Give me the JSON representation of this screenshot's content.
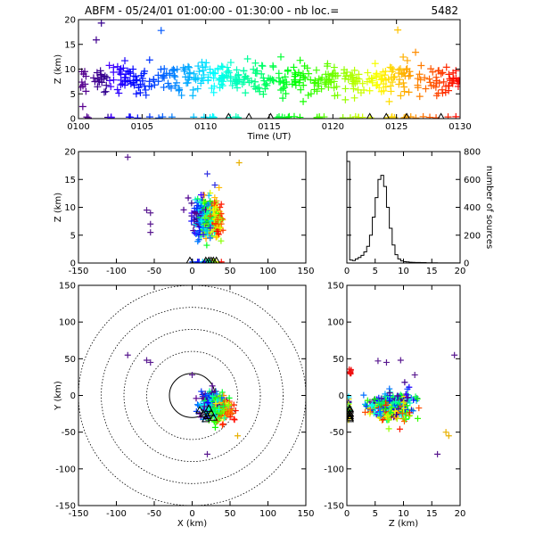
{
  "header": {
    "title": "ABFM - 05/24/01 01:00:00 - 01:30:00 - nb loc.=",
    "count": "5482"
  },
  "chart_data": [
    {
      "id": "time-height",
      "type": "scatter",
      "xlabel": "Time (UT)",
      "ylabel": "Z (km)",
      "xlim": [
        0,
        30
      ],
      "ylim": [
        0,
        20
      ],
      "x_ticks": [
        0,
        5,
        10,
        15,
        20,
        25,
        30
      ],
      "x_tick_labels": [
        "0100",
        "0105",
        "0110",
        "0115",
        "0120",
        "0125",
        "0130"
      ],
      "y_ticks": [
        0,
        5,
        10,
        15,
        20
      ],
      "color_encoding": "time, purple to red",
      "outliers": [
        {
          "x": 1.8,
          "y": 19.3
        },
        {
          "x": 1.4,
          "y": 15.9
        },
        {
          "x": 6.5,
          "y": 17.8
        },
        {
          "x": 25.1,
          "y": 17.9
        },
        {
          "x": 26.5,
          "y": 13.4
        }
      ],
      "stations_x": [
        11.8,
        13.4,
        15.1,
        22.9,
        24.2,
        25.8,
        28.5
      ]
    },
    {
      "id": "xz-view",
      "type": "scatter",
      "xlabel": "",
      "ylabel": "Z (km)",
      "xlim": [
        -150,
        150
      ],
      "ylim": [
        0,
        20
      ],
      "x_ticks": [
        -150,
        -100,
        -50,
        0,
        50,
        100,
        150
      ],
      "y_ticks": [
        0,
        5,
        10,
        15,
        20
      ],
      "cluster": {
        "x_center": 20,
        "x_spread": 22,
        "z_center": 8,
        "z_spread": 3.5
      },
      "outliers": [
        {
          "x": -85,
          "z": 19
        },
        {
          "x": -60,
          "z": 9.5
        },
        {
          "x": -55,
          "z": 9
        },
        {
          "x": -55,
          "z": 7
        },
        {
          "x": -55,
          "z": 5.5
        },
        {
          "x": 20,
          "z": 16
        },
        {
          "x": 62,
          "z": 18
        },
        {
          "x": 30,
          "z": 14
        }
      ],
      "stations_x": [
        -3,
        18,
        22,
        25,
        28,
        32
      ]
    },
    {
      "id": "height-histogram",
      "type": "line",
      "xlabel": "",
      "ylabel": "number of sources",
      "y_axis_side": "right",
      "xlim": [
        0,
        20
      ],
      "ylim": [
        0,
        800
      ],
      "x_ticks": [
        0,
        5,
        10,
        15,
        20
      ],
      "y_ticks": [
        0,
        200,
        400,
        600,
        800
      ],
      "bin_width_km": 0.5,
      "bin_start_km": 0,
      "counts": [
        730,
        22,
        18,
        30,
        40,
        55,
        80,
        120,
        200,
        330,
        470,
        600,
        630,
        550,
        400,
        250,
        130,
        60,
        30,
        15,
        10,
        8,
        6,
        5,
        4,
        4,
        3,
        3,
        2,
        2,
        2,
        2,
        1,
        1,
        1,
        1,
        1,
        1,
        1,
        1
      ]
    },
    {
      "id": "plan-view",
      "type": "scatter",
      "xlabel": "X (km)",
      "ylabel": "Y (km)",
      "xlim": [
        -150,
        150
      ],
      "ylim": [
        -150,
        150
      ],
      "x_ticks": [
        -150,
        -100,
        -50,
        0,
        50,
        100,
        150
      ],
      "y_ticks": [
        -150,
        -100,
        -50,
        0,
        50,
        100,
        150
      ],
      "range_rings_km": [
        30,
        60,
        90,
        120,
        150
      ],
      "cluster": {
        "x_center": 30,
        "y_center": -20,
        "spread": 14
      },
      "outliers": [
        {
          "x": -85,
          "y": 55
        },
        {
          "x": -60,
          "y": 48
        },
        {
          "x": -55,
          "y": 45
        },
        {
          "x": 20,
          "y": -80
        },
        {
          "x": 60,
          "y": -55
        },
        {
          "x": 0,
          "y": 28
        }
      ],
      "stations": [
        {
          "x": 10,
          "y": -20
        },
        {
          "x": 15,
          "y": -25
        },
        {
          "x": 20,
          "y": -28
        },
        {
          "x": 25,
          "y": -24
        },
        {
          "x": 18,
          "y": -32
        },
        {
          "x": 28,
          "y": -30
        },
        {
          "x": 22,
          "y": -18
        }
      ]
    },
    {
      "id": "zy-view",
      "type": "scatter",
      "xlabel": "Z (km)",
      "ylabel": "",
      "xlim": [
        0,
        20
      ],
      "ylim": [
        -150,
        150
      ],
      "x_ticks": [
        0,
        5,
        10,
        15,
        20
      ],
      "y_ticks": [
        -150,
        -100,
        -50,
        0,
        50,
        100,
        150
      ],
      "cluster": {
        "z_center": 8,
        "z_spread": 3.5,
        "y_center": -20,
        "y_spread": 14
      },
      "outliers": [
        {
          "z": 19,
          "y": 55
        },
        {
          "z": 9.5,
          "y": 48
        },
        {
          "z": 7,
          "y": 45
        },
        {
          "z": 5.5,
          "y": 47
        },
        {
          "z": 16,
          "y": -80
        },
        {
          "z": 18,
          "y": -55
        },
        {
          "z": 17.5,
          "y": -50
        },
        {
          "z": 12,
          "y": 28
        }
      ],
      "stations_y": [
        -20,
        -24,
        -28,
        -32,
        -25,
        -30,
        -18
      ]
    }
  ]
}
